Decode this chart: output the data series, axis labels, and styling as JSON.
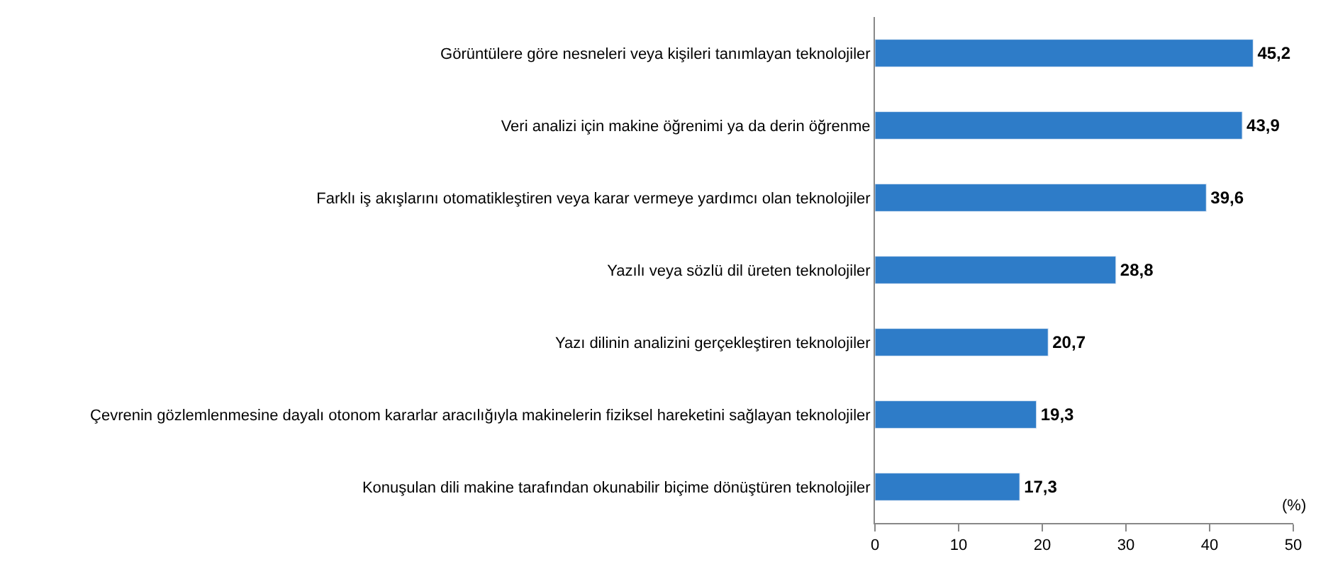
{
  "chart_data": {
    "type": "bar",
    "orientation": "horizontal",
    "xlabel": "(%)",
    "categories": [
      "Görüntülere göre nesneleri veya kişileri tanımlayan teknolojiler",
      "Veri analizi için makine öğrenimi ya da derin öğrenme",
      "Farklı iş akışlarını otomatikleştiren veya karar vermeye yardımcı olan teknolojiler",
      "Yazılı veya sözlü dil üreten teknolojiler",
      "Yazı dilinin analizini gerçekleştiren teknolojiler",
      "Çevrenin gözlemlenmesine dayalı otonom kararlar aracılığıyla makinelerin fiziksel hareketini sağlayan teknolojiler",
      "Konuşulan dili makine tarafından okunabilir biçime dönüştüren teknolojiler"
    ],
    "values": [
      45.2,
      43.9,
      39.6,
      28.8,
      20.7,
      19.3,
      17.3
    ],
    "value_labels": [
      "45,2",
      "43,9",
      "39,6",
      "28,8",
      "20,7",
      "19,3",
      "17,3"
    ],
    "color": "#2e7cc8",
    "xlim": [
      0,
      50
    ],
    "xticks": [
      0,
      10,
      20,
      30,
      40,
      50
    ]
  }
}
